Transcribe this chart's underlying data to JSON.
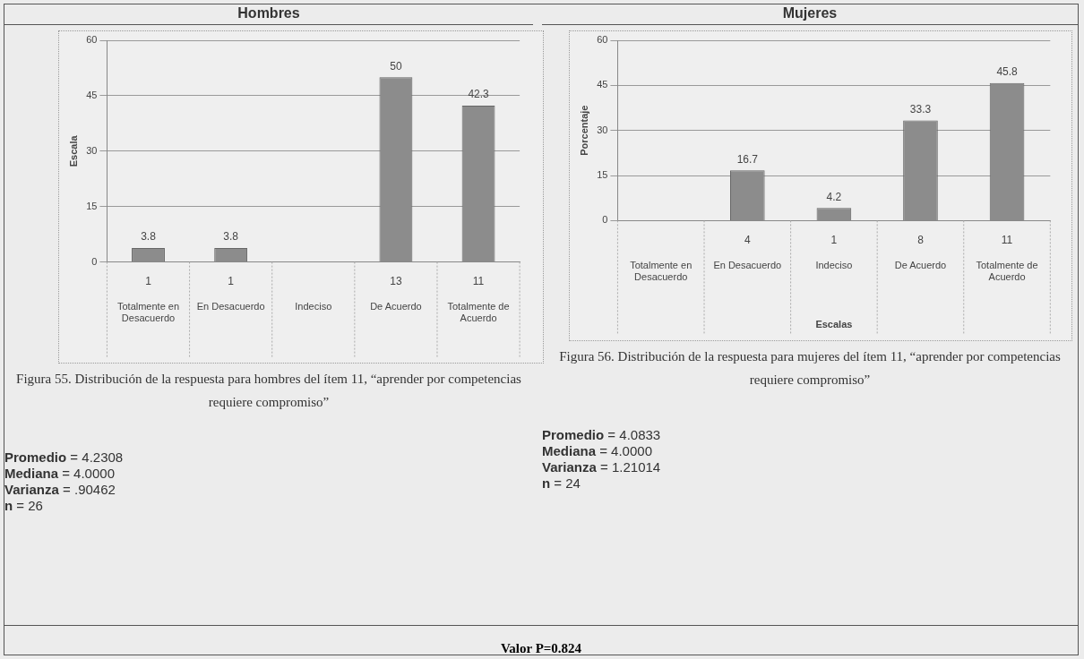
{
  "chart_data": [
    {
      "type": "bar",
      "title": "Hombres",
      "ylabel": "Escala",
      "categories": [
        "Totalmente en Desacuerdo",
        "En Desacuerdo",
        "Indeciso",
        "De Acuerdo",
        "Totalmente de Acuerdo"
      ],
      "values": [
        3.8,
        3.8,
        null,
        50,
        42.3
      ],
      "color": "#8c8c8c",
      "ylim": [
        0,
        60
      ],
      "yticks": [
        0,
        15,
        30,
        45,
        60
      ],
      "grid": "y",
      "data_labels": true,
      "annotations": [
        "1",
        "1",
        "13",
        "11",
        "Figura 55.  Distribución de la respuesta para hombres del ítem 11, “aprender por competencias requiere compromiso”",
        "Promedio = 4.2308",
        "Mediana = 4.0000",
        "Varianza =  .90462",
        "n = 26"
      ]
    },
    {
      "type": "bar",
      "title": "Mujeres",
      "ylabel": "Porcentaje",
      "xlabel": "Escalas",
      "categories": [
        "Totalmente en Desacuerdo",
        "En Desacuerdo",
        "Indeciso",
        "De Acuerdo",
        "Totalmente de Acuerdo"
      ],
      "values": [
        null,
        16.7,
        4.2,
        33.3,
        45.8
      ],
      "color": "#8c8c8c",
      "ylim": [
        0,
        60
      ],
      "yticks": [
        0,
        15,
        30,
        45,
        60
      ],
      "grid": "y",
      "data_labels": true,
      "annotations": [
        "4",
        "1",
        "8",
        "11",
        "Figura 56.  Distribución de la respuesta para mujeres del ítem 11, “aprender por competencias requiere compromiso”",
        "Promedio = 4.0833",
        "Mediana = 4.0000",
        "Varianza =  1.21014",
        "n = 24",
        "Valor P=0.824"
      ]
    }
  ]
}
